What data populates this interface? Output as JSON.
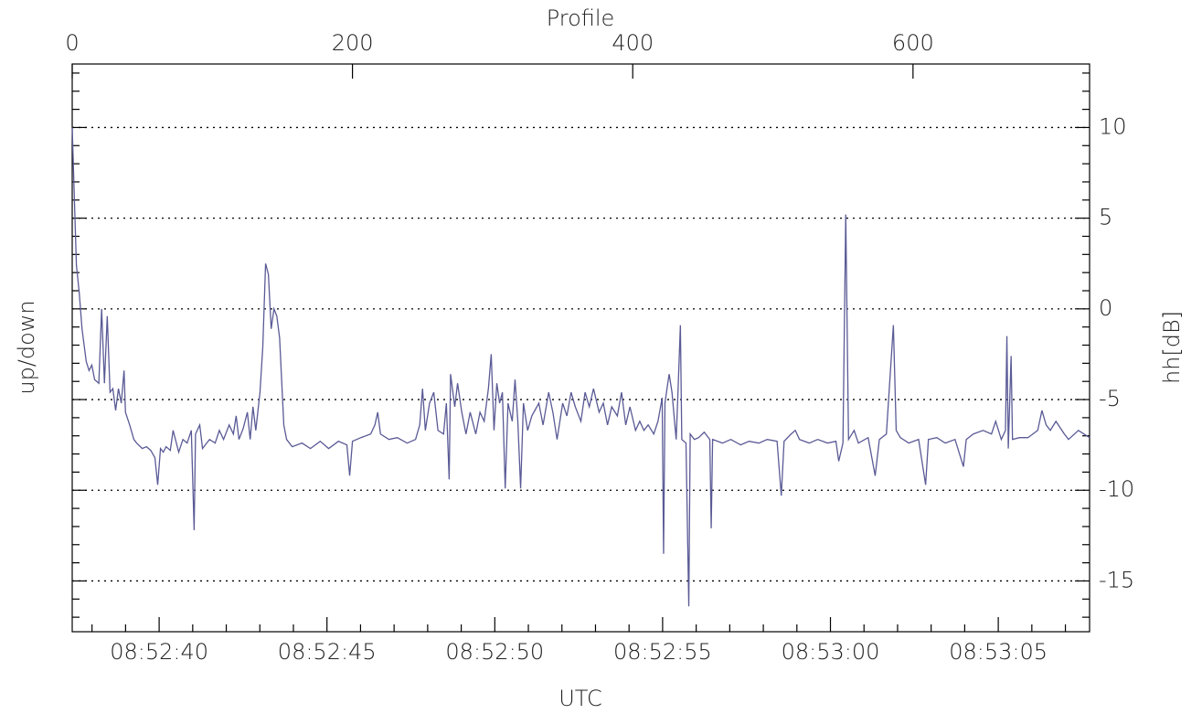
{
  "chart_data": {
    "type": "line",
    "xlabel": "Profile",
    "x2label": "UTC",
    "ylabel": "hh[dB]",
    "ylabel_left": "up/down",
    "color": "#5a5a96",
    "grid": true,
    "xlim": [
      0,
      726
    ],
    "xticks": [
      0,
      200,
      400,
      600
    ],
    "x2lim": [
      37.41,
      67.72
    ],
    "x2ticks": [
      {
        "value": 40,
        "label": "08:52:40"
      },
      {
        "value": 45,
        "label": "08:52:45"
      },
      {
        "value": 50,
        "label": "08:52:50"
      },
      {
        "value": 55,
        "label": "08:52:55"
      },
      {
        "value": 60,
        "label": "08:53:00"
      },
      {
        "value": 65,
        "label": "08:53:05"
      }
    ],
    "x2minor_ticks": [
      38,
      39,
      41,
      42,
      43,
      44,
      46,
      47,
      48,
      49,
      51,
      52,
      53,
      54,
      56,
      57,
      58,
      59,
      61,
      62,
      63,
      64,
      66,
      67
    ],
    "ylim": [
      -17.8,
      13.5
    ],
    "yticks": [
      -15,
      -10,
      -5,
      0,
      5,
      10
    ],
    "yminor_ticks": [
      -17,
      -16,
      -14,
      -13,
      -12,
      -11,
      -9,
      -8,
      -7,
      -6,
      -4,
      -3,
      -2,
      -1,
      1,
      2,
      3,
      4,
      6,
      7,
      8,
      9,
      11,
      12,
      13
    ],
    "x": [
      0,
      2,
      3,
      5,
      7,
      10,
      12,
      14,
      16,
      19,
      21,
      23,
      25,
      27,
      29,
      31,
      33,
      35,
      37,
      38,
      41,
      44,
      46,
      50,
      53,
      56,
      59,
      61,
      63,
      65,
      67,
      70,
      72,
      76,
      79,
      82,
      85,
      87,
      88,
      91,
      93,
      96,
      98,
      102,
      105,
      108,
      112,
      115,
      117,
      119,
      122,
      125,
      127,
      129,
      131,
      134,
      136,
      138,
      140,
      142,
      144,
      146,
      148,
      151,
      153,
      157,
      164,
      170,
      177,
      183,
      190,
      196,
      198,
      200,
      206,
      213,
      216,
      218,
      220,
      226,
      232,
      239,
      245,
      248,
      250,
      252,
      255,
      258,
      261,
      265,
      267,
      269,
      270,
      273,
      275,
      278,
      281,
      284,
      288,
      291,
      294,
      297,
      299,
      301,
      303,
      305,
      307,
      309,
      311,
      314,
      316,
      318,
      320,
      322,
      325,
      328,
      333,
      336,
      340,
      343,
      346,
      350,
      353,
      356,
      359,
      363,
      366,
      369,
      372,
      376,
      379,
      382,
      385,
      389,
      392,
      395,
      398,
      402,
      405,
      408,
      411,
      415,
      418,
      421,
      422,
      423,
      425,
      426,
      428,
      431,
      432,
      434,
      435,
      438,
      440,
      441,
      444,
      447,
      451,
      455,
      456,
      457,
      464,
      470,
      477,
      483,
      490,
      496,
      503,
      506,
      508,
      513,
      516,
      519,
      526,
      532,
      539,
      545,
      547,
      550,
      552,
      554,
      558,
      561,
      568,
      573,
      576,
      581,
      586,
      588,
      591,
      597,
      604,
      609,
      611,
      617,
      623,
      630,
      636,
      638,
      643,
      650,
      656,
      659,
      663,
      666,
      667,
      668,
      670,
      671,
      676,
      682,
      689,
      692,
      695,
      698,
      702,
      708,
      711,
      718,
      726
    ],
    "values": [
      10.0,
      4.9,
      2.4,
      0.9,
      -1.1,
      -2.9,
      -3.4,
      -3.1,
      -3.9,
      -4.1,
      0.0,
      -4.1,
      -0.4,
      -4.6,
      -4.4,
      -5.6,
      -4.4,
      -5.2,
      -3.4,
      -5.7,
      -6.4,
      -7.2,
      -7.4,
      -7.7,
      -7.6,
      -7.8,
      -8.2,
      -9.7,
      -7.7,
      -7.9,
      -7.6,
      -7.8,
      -6.7,
      -7.9,
      -7.2,
      -7.4,
      -6.7,
      -12.2,
      -6.9,
      -6.4,
      -7.7,
      -7.4,
      -7.2,
      -7.4,
      -6.7,
      -7.2,
      -6.4,
      -6.9,
      -5.9,
      -7.2,
      -6.6,
      -5.7,
      -7.2,
      -5.4,
      -6.7,
      -4.6,
      -2.1,
      2.5,
      1.9,
      -1.1,
      0.0,
      -0.4,
      -1.6,
      -6.4,
      -7.2,
      -7.6,
      -7.4,
      -7.7,
      -7.3,
      -7.7,
      -7.3,
      -7.5,
      -9.2,
      -7.3,
      -7.1,
      -6.9,
      -6.4,
      -5.7,
      -6.9,
      -7.2,
      -7.1,
      -7.4,
      -7.2,
      -6.4,
      -4.4,
      -6.7,
      -5.2,
      -4.6,
      -6.7,
      -6.9,
      -5.2,
      -9.4,
      -3.6,
      -5.4,
      -4.1,
      -5.7,
      -6.9,
      -5.7,
      -6.9,
      -5.7,
      -6.2,
      -4.4,
      -2.5,
      -6.7,
      -4.1,
      -5.2,
      -4.6,
      -9.9,
      -5.2,
      -6.2,
      -3.9,
      -6.2,
      -9.9,
      -5.2,
      -6.7,
      -5.9,
      -5.2,
      -6.4,
      -4.6,
      -5.7,
      -7.2,
      -5.2,
      -5.9,
      -4.6,
      -5.4,
      -6.2,
      -4.6,
      -5.4,
      -4.4,
      -5.7,
      -5.2,
      -6.4,
      -5.4,
      -5.9,
      -4.6,
      -6.4,
      -5.4,
      -6.7,
      -6.2,
      -6.7,
      -6.4,
      -6.9,
      -6.2,
      -4.9,
      -13.5,
      -5.2,
      -4.1,
      -3.6,
      -4.6,
      -7.2,
      -5.2,
      -0.9,
      -7.2,
      -7.4,
      -16.4,
      -6.9,
      -7.2,
      -7.1,
      -6.8,
      -7.2,
      -12.1,
      -7.2,
      -7.4,
      -7.2,
      -7.5,
      -7.3,
      -7.4,
      -7.2,
      -7.3,
      -10.3,
      -7.3,
      -6.9,
      -6.7,
      -7.2,
      -7.4,
      -7.2,
      -7.4,
      -7.3,
      -8.4,
      -7.4,
      5.2,
      -7.2,
      -6.7,
      -7.4,
      -7.1,
      -9.2,
      -7.2,
      -6.9,
      -0.9,
      -6.7,
      -7.1,
      -7.4,
      -7.2,
      -9.7,
      -7.2,
      -7.1,
      -7.4,
      -7.2,
      -8.7,
      -7.2,
      -6.9,
      -6.7,
      -6.9,
      -6.2,
      -7.2,
      -6.7,
      -1.5,
      -7.7,
      -2.6,
      -7.2,
      -7.1,
      -7.1,
      -6.7,
      -5.6,
      -6.4,
      -6.7,
      -6.2,
      -6.9,
      -7.2,
      -6.7,
      -7.1
    ]
  }
}
